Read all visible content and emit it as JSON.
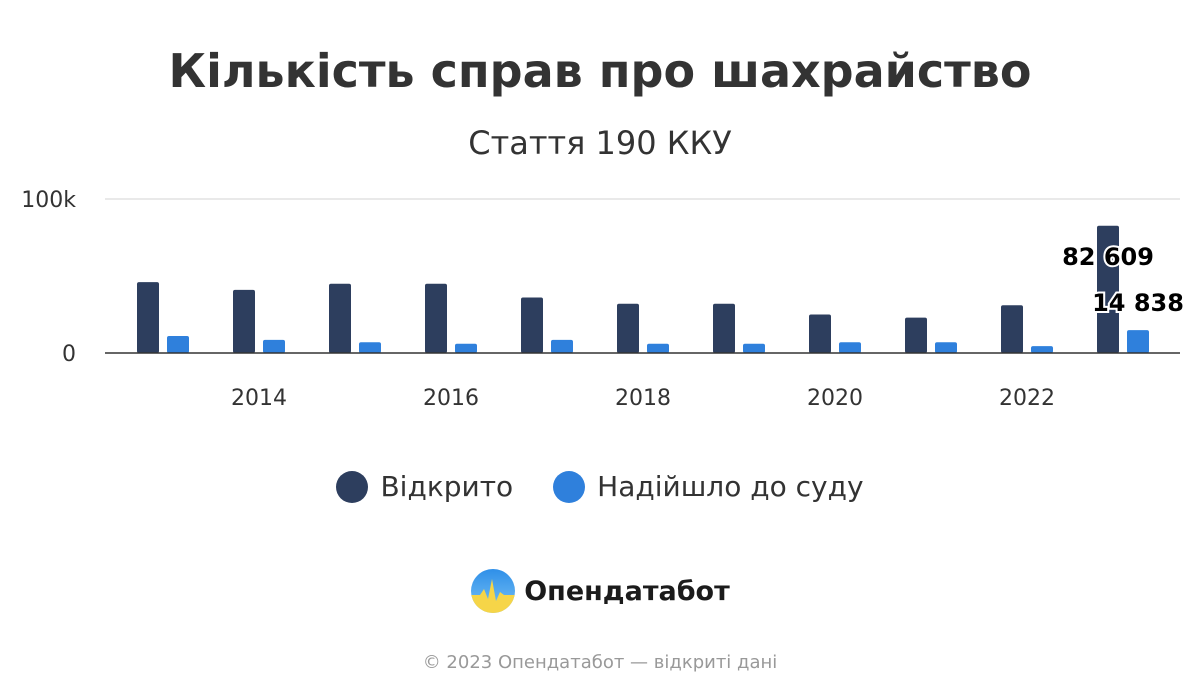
{
  "chart_data": {
    "type": "bar",
    "title": "Кількість справ про шахрайство",
    "subtitle": "Стаття 190 ККУ",
    "x": [
      2013,
      2014,
      2015,
      2016,
      2017,
      2018,
      2019,
      2020,
      2021,
      2022,
      2023
    ],
    "x_tick_labels": [
      "2014",
      "2016",
      "2018",
      "2020",
      "2022"
    ],
    "y_tick_labels": [
      "0",
      "100k"
    ],
    "ylim": [
      0,
      100000
    ],
    "grid": true,
    "legend_position": "bottom",
    "series": [
      {
        "name": "Відкрито",
        "color": "#2d3e5e",
        "values": [
          46000,
          41000,
          45000,
          45000,
          36000,
          32000,
          32000,
          25000,
          23000,
          31000,
          82609
        ]
      },
      {
        "name": "Надійшло до суду",
        "color": "#2f80dc",
        "values": [
          11000,
          8500,
          7000,
          6000,
          8500,
          6000,
          6000,
          7000,
          7000,
          4500,
          14838
        ]
      }
    ],
    "data_labels": [
      {
        "series": 0,
        "index": 10,
        "text": "82 609"
      },
      {
        "series": 1,
        "index": 10,
        "text": "14 838"
      }
    ]
  },
  "legend": {
    "items": [
      {
        "label": "Відкрито",
        "color": "#2d3e5e"
      },
      {
        "label": "Надійшло до суду",
        "color": "#2f80dc"
      }
    ]
  },
  "logo": {
    "name": "Опендатабот"
  },
  "footer": {
    "text": "© 2023 Опендатабот — відкриті дані"
  }
}
